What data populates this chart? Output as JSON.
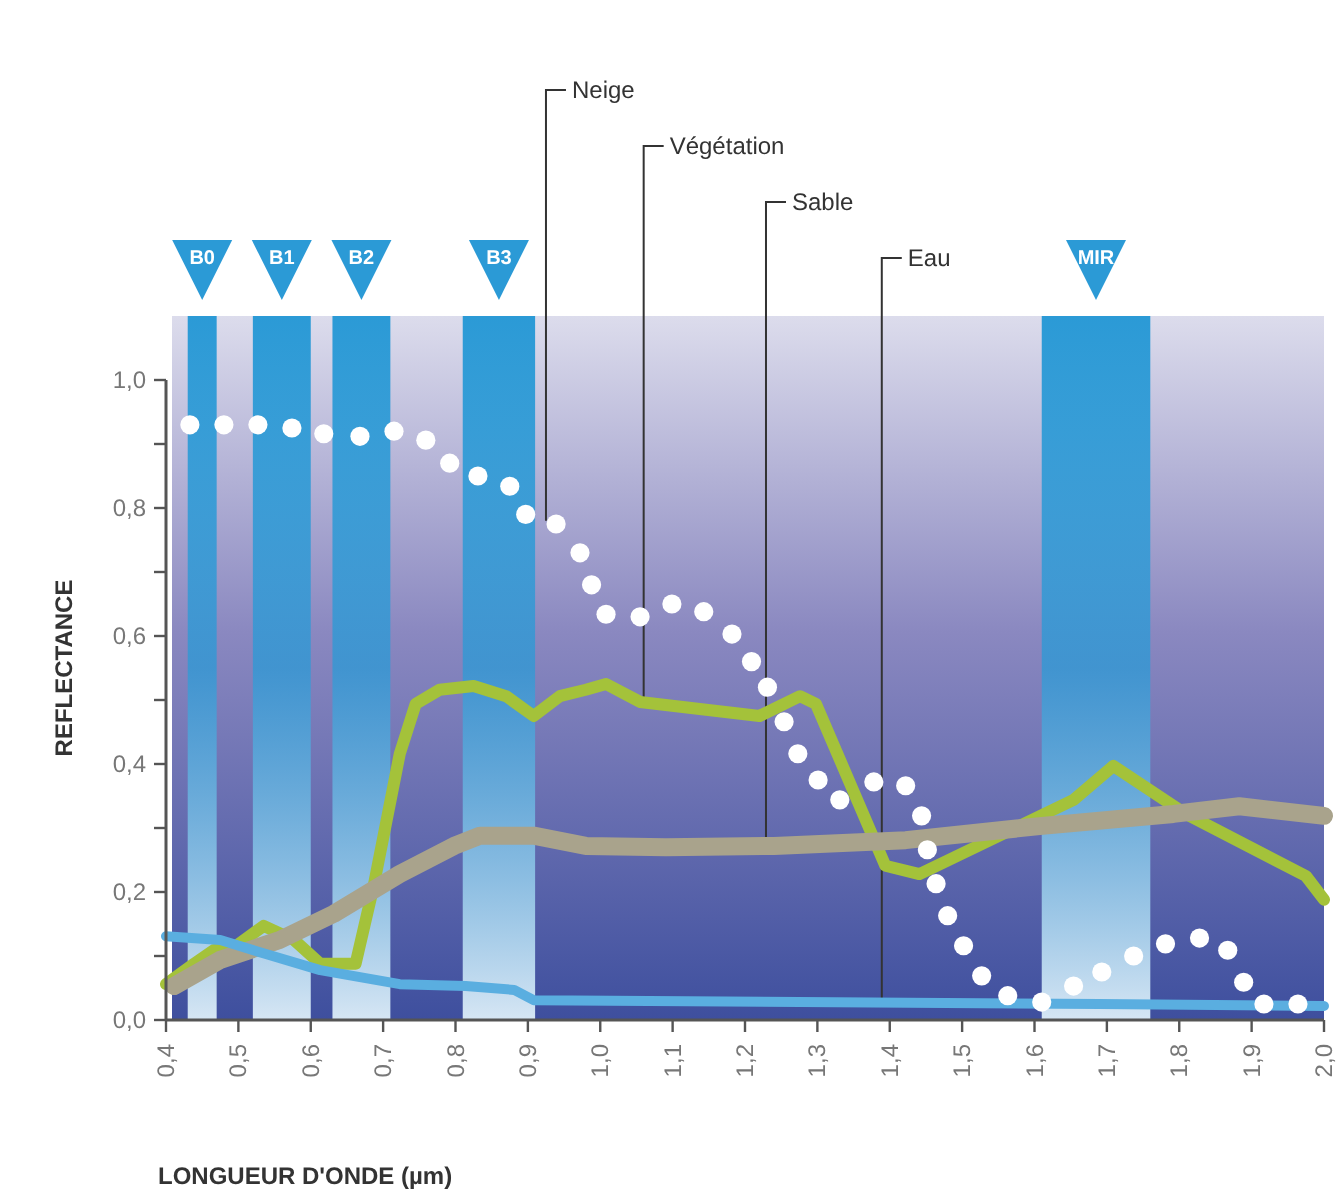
{
  "chart_data": {
    "type": "line",
    "xlabel": "LONGUEUR D'ONDE (µm)",
    "ylabel": "REFLECTANCE",
    "xlim": [
      0.4,
      2.0
    ],
    "ylim": [
      0,
      1.1
    ],
    "xticks": [
      {
        "value": 0.4,
        "label": "0,4"
      },
      {
        "value": 0.5,
        "label": "0,5"
      },
      {
        "value": 0.6,
        "label": "0,6"
      },
      {
        "value": 0.7,
        "label": "0,7"
      },
      {
        "value": 0.8,
        "label": "0,8"
      },
      {
        "value": 0.9,
        "label": "0,9"
      },
      {
        "value": 1.0,
        "label": "1,0"
      },
      {
        "value": 1.1,
        "label": "1,1"
      },
      {
        "value": 1.2,
        "label": "1,2"
      },
      {
        "value": 1.3,
        "label": "1,3"
      },
      {
        "value": 1.4,
        "label": "1,4"
      },
      {
        "value": 1.5,
        "label": "1,5"
      },
      {
        "value": 1.6,
        "label": "1,6"
      },
      {
        "value": 1.7,
        "label": "1,7"
      },
      {
        "value": 1.8,
        "label": "1,8"
      },
      {
        "value": 1.9,
        "label": "1,9"
      },
      {
        "value": 2.0,
        "label": "2,0"
      }
    ],
    "yticks": [
      {
        "value": 0,
        "label": "0,0"
      },
      {
        "value": 0.1,
        "label": null
      },
      {
        "value": 0.2,
        "label": "0,2"
      },
      {
        "value": 0.3,
        "label": null
      },
      {
        "value": 0.4,
        "label": "0,4"
      },
      {
        "value": 0.5,
        "label": null
      },
      {
        "value": 0.6,
        "label": "0,6"
      },
      {
        "value": 0.7,
        "label": null
      },
      {
        "value": 0.8,
        "label": "0,8"
      },
      {
        "value": 0.9,
        "label": null
      },
      {
        "value": 1.0,
        "label": "1,0"
      }
    ],
    "grid": false,
    "bands": [
      {
        "axis": "x",
        "from": 0.43,
        "to": 0.47,
        "label": "B0",
        "color": "#2b9ad6"
      },
      {
        "axis": "x",
        "from": 0.52,
        "to": 0.6,
        "label": "B1",
        "color": "#2b9ad6"
      },
      {
        "axis": "x",
        "from": 0.63,
        "to": 0.71,
        "label": "B2",
        "color": "#2b9ad6"
      },
      {
        "axis": "x",
        "from": 0.81,
        "to": 0.91,
        "label": "B3",
        "color": "#2b9ad6"
      },
      {
        "axis": "x",
        "from": 1.61,
        "to": 1.76,
        "label": "MIR",
        "color": "#2b9ad6"
      }
    ],
    "series": [
      {
        "type": "scatter",
        "marker": "circle",
        "color": "#ffffff",
        "x": [
          0.433,
          0.48,
          0.527,
          0.574,
          0.618,
          0.668,
          0.715,
          0.759,
          0.792,
          0.831,
          0.875,
          0.897,
          0.939,
          0.972,
          0.988,
          1.008,
          1.055,
          1.099,
          1.143,
          1.182,
          1.209,
          1.231,
          1.254,
          1.273,
          1.301,
          1.331,
          1.378,
          1.422,
          1.444,
          1.452,
          1.464,
          1.48,
          1.502,
          1.527,
          1.563,
          1.61,
          1.654,
          1.693,
          1.737,
          1.781,
          1.828,
          1.867,
          1.889,
          1.917,
          1.964
        ],
        "values": [
          0.93,
          0.93,
          0.93,
          0.925,
          0.916,
          0.912,
          0.92,
          0.906,
          0.87,
          0.85,
          0.834,
          0.79,
          0.775,
          0.73,
          0.68,
          0.634,
          0.63,
          0.65,
          0.638,
          0.603,
          0.56,
          0.52,
          0.466,
          0.416,
          0.375,
          0.344,
          0.372,
          0.366,
          0.319,
          0.266,
          0.213,
          0.163,
          0.116,
          0.069,
          0.038,
          0.028,
          0.053,
          0.075,
          0.1,
          0.119,
          0.128,
          0.109,
          0.059,
          0.025,
          0.025
        ]
      },
      {
        "marker": "none",
        "line_style": "solid",
        "color": "#a4c23a",
        "x": [
          0.4,
          0.439,
          0.466,
          0.497,
          0.535,
          0.577,
          0.613,
          0.662,
          0.687,
          0.723,
          0.745,
          0.778,
          0.825,
          0.87,
          0.908,
          0.944,
          0.98,
          1.008,
          1.055,
          1.22,
          1.276,
          1.298,
          1.394,
          1.441,
          1.654,
          1.709,
          1.809,
          1.975,
          2.0
        ],
        "values": [
          0.056,
          0.088,
          0.109,
          0.116,
          0.147,
          0.125,
          0.088,
          0.088,
          0.21,
          0.416,
          0.494,
          0.516,
          0.522,
          0.506,
          0.475,
          0.506,
          0.516,
          0.525,
          0.497,
          0.475,
          0.506,
          0.494,
          0.241,
          0.228,
          0.344,
          0.397,
          0.322,
          0.225,
          0.188
        ]
      },
      {
        "marker": "none",
        "line_style": "solid",
        "color": "#a9a38c",
        "x": [
          0.411,
          0.475,
          0.557,
          0.632,
          0.723,
          0.798,
          0.834,
          0.908,
          0.98,
          1.091,
          1.24,
          1.422,
          1.607,
          1.792,
          1.883,
          2.0
        ],
        "values": [
          0.053,
          0.094,
          0.125,
          0.166,
          0.228,
          0.272,
          0.288,
          0.288,
          0.272,
          0.27,
          0.272,
          0.281,
          0.303,
          0.322,
          0.334,
          0.319
        ]
      },
      {
        "marker": "none",
        "line_style": "solid",
        "color": "#5aaee0",
        "x": [
          0.4,
          0.475,
          0.538,
          0.613,
          0.723,
          0.814,
          0.881,
          0.908,
          1.276,
          1.69,
          2.0
        ],
        "values": [
          0.131,
          0.125,
          0.103,
          0.078,
          0.056,
          0.053,
          0.047,
          0.031,
          0.028,
          0.025,
          0.022
        ]
      }
    ],
    "annotations": [
      {
        "text": "Neige",
        "x": 0.925,
        "y": 0.78
      },
      {
        "text": "Végétation",
        "x": 1.06,
        "y": 0.5
      },
      {
        "text": "Sable",
        "x": 1.229,
        "y": 0.27
      },
      {
        "text": "Eau",
        "x": 1.389,
        "y": 0.028
      }
    ]
  }
}
